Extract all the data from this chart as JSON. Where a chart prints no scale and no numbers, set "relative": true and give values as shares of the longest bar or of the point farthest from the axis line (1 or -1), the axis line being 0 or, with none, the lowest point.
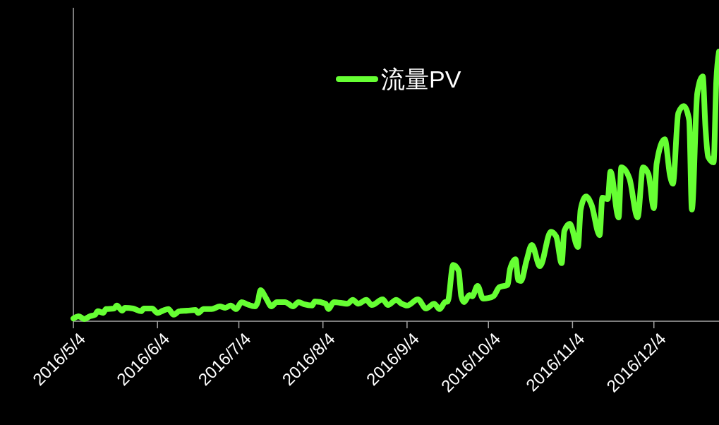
{
  "chart_data": {
    "type": "line",
    "relative": true,
    "legend": "top",
    "line_style": "solid",
    "xlim": [
      "2016-05-04",
      "2016-12-28"
    ],
    "xticks": [
      {
        "value": "2016-05-04",
        "label": "2016/5/4"
      },
      {
        "value": "2016-06-04",
        "label": "2016/6/4"
      },
      {
        "value": "2016-07-04",
        "label": "2016/7/4"
      },
      {
        "value": "2016-08-04",
        "label": "2016/8/4"
      },
      {
        "value": "2016-09-04",
        "label": "2016/9/4"
      },
      {
        "value": "2016-10-04",
        "label": "2016/10/4"
      },
      {
        "value": "2016-11-04",
        "label": "2016/11/4"
      },
      {
        "value": "2016-12-04",
        "label": "2016/12/4"
      }
    ],
    "x": [
      "2016-05-04",
      "2016-05-06",
      "2016-05-08",
      "2016-05-10",
      "2016-05-12",
      "2016-05-13",
      "2016-05-15",
      "2016-05-16",
      "2016-05-19",
      "2016-05-20",
      "2016-05-22",
      "2016-05-23",
      "2016-05-26",
      "2016-05-29",
      "2016-05-30",
      "2016-06-02",
      "2016-06-04",
      "2016-06-06",
      "2016-06-08",
      "2016-06-10",
      "2016-06-12",
      "2016-06-15",
      "2016-06-18",
      "2016-06-19",
      "2016-06-21",
      "2016-06-24",
      "2016-06-27",
      "2016-06-29",
      "2016-07-01",
      "2016-07-03",
      "2016-07-05",
      "2016-07-07",
      "2016-07-10",
      "2016-07-11",
      "2016-07-12",
      "2016-07-14",
      "2016-07-16",
      "2016-07-18",
      "2016-07-21",
      "2016-07-24",
      "2016-07-26",
      "2016-07-28",
      "2016-07-31",
      "2016-08-01",
      "2016-08-05",
      "2016-08-06",
      "2016-08-08",
      "2016-08-13",
      "2016-08-15",
      "2016-08-17",
      "2016-08-20",
      "2016-08-22",
      "2016-08-26",
      "2016-08-28",
      "2016-08-31",
      "2016-09-02",
      "2016-09-04",
      "2016-09-08",
      "2016-09-11",
      "2016-09-14",
      "2016-09-16",
      "2016-09-18",
      "2016-09-19",
      "2016-09-21",
      "2016-09-23",
      "2016-09-24",
      "2016-09-25",
      "2016-09-27",
      "2016-09-28",
      "2016-09-30",
      "2016-10-02",
      "2016-10-04",
      "2016-10-06",
      "2016-10-08",
      "2016-10-11",
      "2016-10-12",
      "2016-10-14",
      "2016-10-15",
      "2016-10-16",
      "2016-10-18",
      "2016-10-20",
      "2016-10-23",
      "2016-10-27",
      "2016-10-29",
      "2016-10-31",
      "2016-11-01",
      "2016-11-03",
      "2016-11-06",
      "2016-11-07",
      "2016-11-09",
      "2016-11-11",
      "2016-11-14",
      "2016-11-15",
      "2016-11-17",
      "2016-11-18",
      "2016-11-21",
      "2016-11-22",
      "2016-11-25",
      "2016-11-28",
      "2016-11-30",
      "2016-12-02",
      "2016-12-04",
      "2016-12-05",
      "2016-12-08",
      "2016-12-10",
      "2016-12-11",
      "2016-12-13",
      "2016-12-15",
      "2016-12-17",
      "2016-12-18",
      "2016-12-20",
      "2016-12-22",
      "2016-12-23",
      "2016-12-24",
      "2016-12-26",
      "2016-12-27",
      "2016-12-28"
    ],
    "series": [
      {
        "name": "流量PV",
        "color": "#66ff33",
        "values": [
          0.01,
          0.018,
          0.008,
          0.018,
          0.024,
          0.037,
          0.031,
          0.045,
          0.047,
          0.058,
          0.039,
          0.05,
          0.047,
          0.037,
          0.047,
          0.047,
          0.031,
          0.039,
          0.045,
          0.024,
          0.037,
          0.039,
          0.042,
          0.031,
          0.045,
          0.045,
          0.055,
          0.05,
          0.058,
          0.045,
          0.071,
          0.063,
          0.055,
          0.073,
          0.115,
          0.086,
          0.055,
          0.071,
          0.071,
          0.055,
          0.071,
          0.063,
          0.058,
          0.073,
          0.065,
          0.045,
          0.071,
          0.065,
          0.079,
          0.065,
          0.079,
          0.06,
          0.081,
          0.06,
          0.079,
          0.065,
          0.058,
          0.081,
          0.047,
          0.065,
          0.045,
          0.071,
          0.073,
          0.209,
          0.188,
          0.092,
          0.071,
          0.097,
          0.092,
          0.131,
          0.084,
          0.086,
          0.094,
          0.126,
          0.134,
          0.194,
          0.23,
          0.152,
          0.149,
          0.223,
          0.283,
          0.204,
          0.332,
          0.314,
          0.215,
          0.335,
          0.361,
          0.275,
          0.414,
          0.463,
          0.432,
          0.319,
          0.458,
          0.453,
          0.555,
          0.385,
          0.571,
          0.529,
          0.385,
          0.571,
          0.545,
          0.419,
          0.584,
          0.675,
          0.537,
          0.51,
          0.772,
          0.798,
          0.746,
          0.414,
          0.846,
          0.908,
          0.72,
          0.61,
          0.589,
          0.89,
          1
        ]
      }
    ]
  }
}
